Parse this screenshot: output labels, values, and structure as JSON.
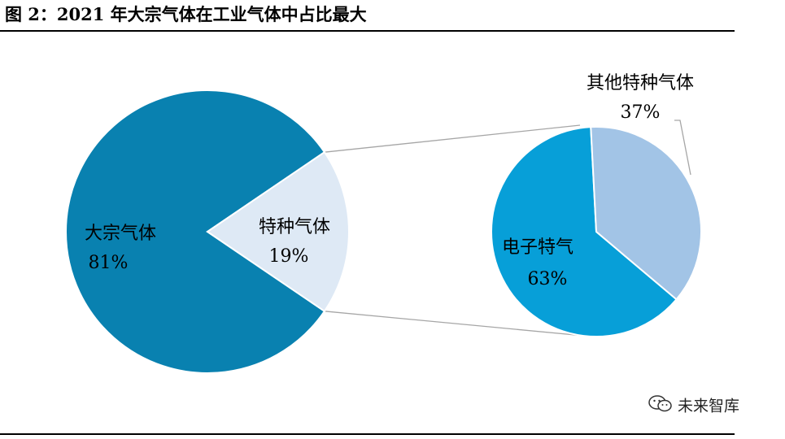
{
  "header": {
    "title": "图 2：2021 年大宗气体在工业气体中占比最大"
  },
  "watermark": {
    "text": "未来智库",
    "icon": "wechat-icon"
  },
  "colors": {
    "main": "#0981B0",
    "special": "#DEE9F5",
    "electronic": "#079FD8",
    "other": "#A2C4E6",
    "connector": "#A6A6A6"
  },
  "chart_data": [
    {
      "type": "pie",
      "slices": [
        {
          "label": "大宗气体",
          "value_label": "81%",
          "value": 81
        },
        {
          "label": "特种气体",
          "value_label": "19%",
          "value": 19
        }
      ]
    },
    {
      "type": "pie",
      "slices": [
        {
          "label": "电子特气",
          "value_label": "63%",
          "value": 63
        },
        {
          "label": "其他特种气体",
          "value_label": "37%",
          "value": 37
        }
      ]
    }
  ]
}
